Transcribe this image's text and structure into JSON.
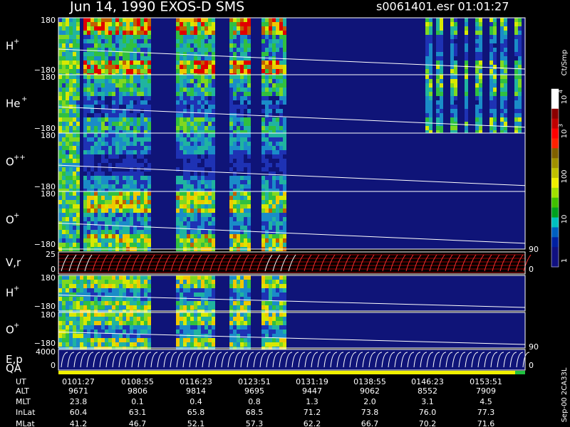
{
  "header": {
    "title": "Jun 14, 1990   EXOS-D SMS",
    "file": "s0061401.esr  01:01:27"
  },
  "panels": [
    {
      "label": "H",
      "sup": "+",
      "ticks": [
        "180",
        "−180"
      ]
    },
    {
      "label": "He",
      "sup": "+",
      "ticks": [
        "180",
        "−180"
      ]
    },
    {
      "label": "O",
      "sup": "++",
      "ticks": [
        "180",
        "−180"
      ]
    },
    {
      "label": "O",
      "sup": "+",
      "ticks": [
        "180",
        "−180"
      ]
    },
    {
      "label": "V,r",
      "ticks": [
        "25",
        "0"
      ],
      "right_ticks": [
        "90",
        "0"
      ]
    },
    {
      "label": "H",
      "sup": "+",
      "ticks": [
        "180",
        "−180"
      ]
    },
    {
      "label": "O",
      "sup": "+",
      "ticks": [
        "180",
        "−180"
      ]
    },
    {
      "label": "E,p",
      "ticks": [
        "4000",
        "0"
      ],
      "right_ticks": [
        "90",
        "0"
      ]
    }
  ],
  "qa_label": "QA",
  "colorbar": {
    "unit": "Ct/Smp",
    "labels": [
      {
        "text": "10",
        "sup": "4"
      },
      {
        "text": "10",
        "sup": "3"
      },
      {
        "text": "100"
      },
      {
        "text": "10"
      },
      {
        "text": "1"
      }
    ]
  },
  "footer": {
    "rows": [
      {
        "label": "UT",
        "values": [
          "0101:27",
          "0108:55",
          "0116:23",
          "0123:51",
          "0131:19",
          "0138:55",
          "0146:23",
          "0153:51"
        ]
      },
      {
        "label": "ALT",
        "values": [
          "9671",
          "9806",
          "9814",
          "9695",
          "9447",
          "9062",
          "8552",
          "7909"
        ]
      },
      {
        "label": "MLT",
        "values": [
          "23.8",
          "0.1",
          "0.4",
          "0.8",
          "1.3",
          "2.0",
          "3.1",
          "4.5"
        ]
      },
      {
        "label": "InLat",
        "values": [
          "60.4",
          "63.1",
          "65.8",
          "68.5",
          "71.2",
          "73.8",
          "76.0",
          "77.3"
        ]
      },
      {
        "label": "MLat",
        "values": [
          "41.2",
          "46.7",
          "52.1",
          "57.3",
          "62.2",
          "66.7",
          "70.2",
          "71.6"
        ]
      }
    ]
  },
  "code": "Sep-00 2CA33L"
}
